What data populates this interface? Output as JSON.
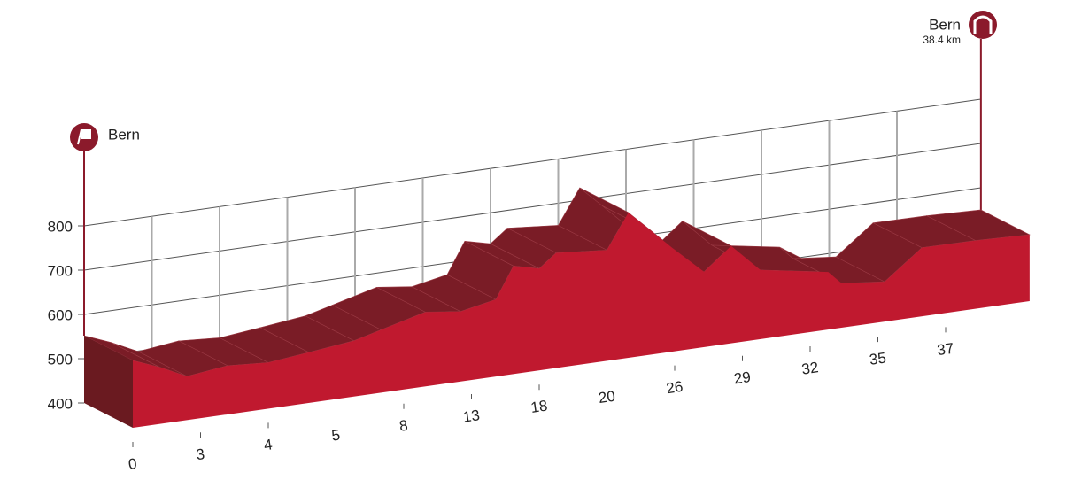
{
  "chart_data": {
    "type": "area",
    "start_label": "Bern",
    "finish_label": "Bern",
    "finish_distance": "38.4 km",
    "x": [
      0,
      1.2,
      2.4,
      3.4,
      4.0,
      4.6,
      5.8,
      7.0,
      9.6,
      12.2,
      14.8,
      16.1,
      18.0,
      18.5,
      20.0,
      21.9,
      23.9,
      25.8,
      27.3,
      28.5,
      29.8,
      32.8,
      33.4,
      35.2,
      36.3,
      37.5,
      38.4
    ],
    "values": [
      552,
      528,
      499,
      510,
      504,
      514,
      526,
      542,
      568,
      558,
      574,
      644,
      630,
      660,
      650,
      728,
      680,
      634,
      570,
      620,
      556,
      530,
      500,
      490,
      555,
      554,
      550
    ],
    "color": "#c0192f",
    "xlim": [
      0,
      38.4
    ],
    "xticks": [
      0,
      3,
      4,
      5,
      8,
      13,
      18,
      20,
      26,
      29,
      32,
      35,
      37
    ],
    "ylim": [
      400,
      800
    ],
    "yticks": [
      400,
      500,
      600,
      700,
      800
    ],
    "grid": true
  }
}
